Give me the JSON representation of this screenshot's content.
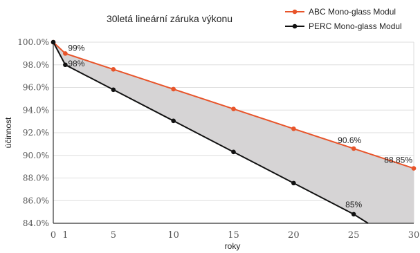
{
  "chart_data": {
    "type": "line",
    "title": "30letá lineární záruka výkonu",
    "xlabel": "roky",
    "ylabel": "účinnost",
    "xlim": [
      0,
      30
    ],
    "ylim": [
      84,
      100
    ],
    "x_ticks": [
      0,
      1,
      5,
      10,
      15,
      20,
      25,
      30
    ],
    "y_ticks": [
      84,
      86,
      88,
      90,
      92,
      94,
      96,
      98,
      100
    ],
    "y_tick_labels": [
      "84.0%",
      "86.0%",
      "88.0%",
      "90.0%",
      "92.0%",
      "94.0%",
      "96.0%",
      "98.0%",
      "100.0%"
    ],
    "grid": "horizontal",
    "legend": "top-right",
    "fill_between_series": true,
    "fill_color": "#d6d4d5",
    "series": [
      {
        "name": "ABC Mono-glass Modul",
        "color": "#e8542a",
        "x": [
          0,
          1,
          5,
          10,
          15,
          20,
          25,
          30
        ],
        "values": [
          100,
          99,
          97.6,
          95.85,
          94.1,
          92.35,
          90.6,
          88.85
        ],
        "labeled_points": [
          {
            "x": 1,
            "y": 99,
            "label": "99%"
          },
          {
            "x": 25,
            "y": 90.6,
            "label": "90.6%"
          },
          {
            "x": 30,
            "y": 88.85,
            "label": "88.85%"
          }
        ]
      },
      {
        "name": "PERC Mono-glass Modul",
        "color": "#111111",
        "x": [
          0,
          1,
          5,
          10,
          15,
          20,
          25,
          26.2
        ],
        "values": [
          100,
          98,
          95.8,
          93.05,
          90.3,
          87.55,
          84.8,
          84
        ],
        "marker_x": [
          0,
          1,
          5,
          10,
          15,
          20,
          25
        ],
        "labeled_points": [
          {
            "x": 1,
            "y": 98,
            "label": "98%"
          },
          {
            "x": 25,
            "y": 84.8,
            "label": "85%"
          }
        ]
      }
    ]
  }
}
